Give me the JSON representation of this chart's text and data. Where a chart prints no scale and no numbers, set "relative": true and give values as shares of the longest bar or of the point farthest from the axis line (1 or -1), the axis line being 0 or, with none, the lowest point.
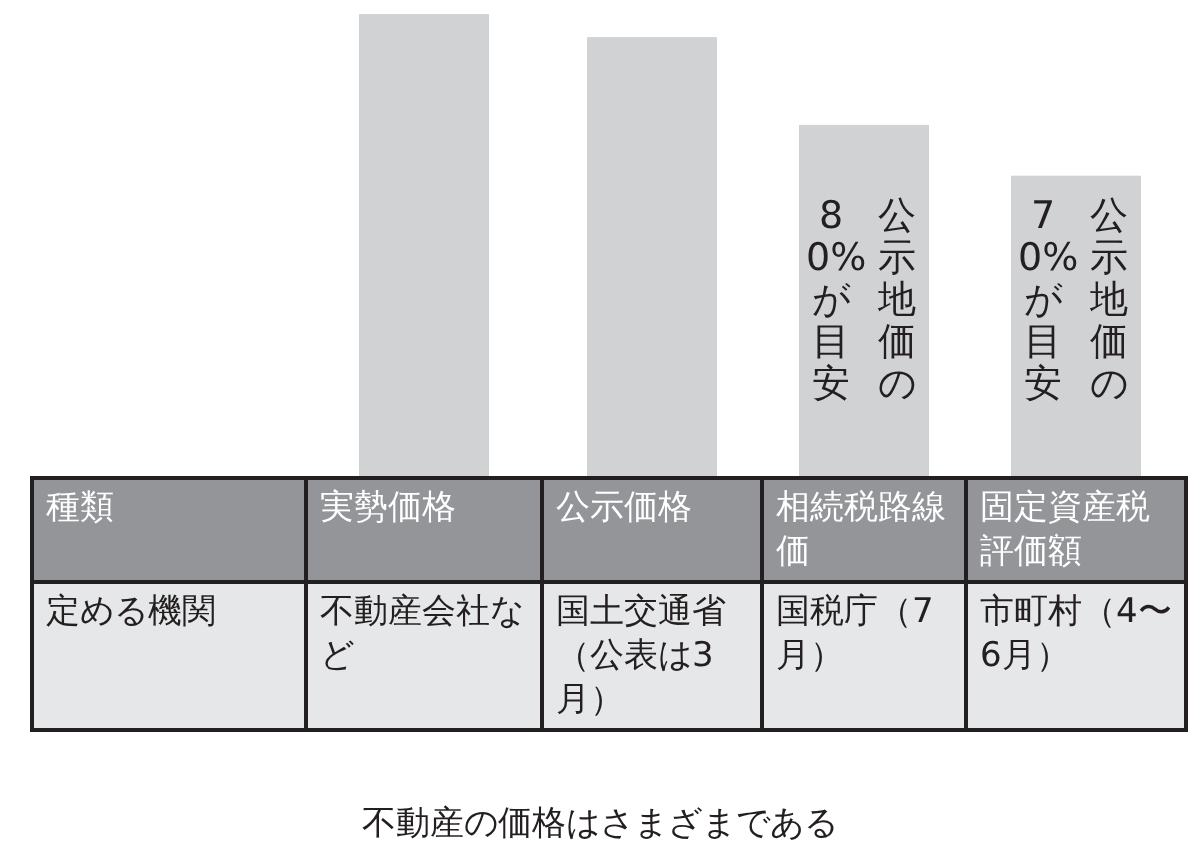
{
  "chart_data": {
    "type": "bar",
    "relative": true,
    "title": "不動産の価格はさまざまである",
    "categories": [
      "実勢価格",
      "公示価格",
      "相続税路線価",
      "固定資産税評価額"
    ],
    "values": [
      1,
      0.95,
      0.76,
      0.65
    ],
    "color": "#d1d2d4",
    "annotations": [
      "種類",
      "定める機関",
      "不動産会社など",
      "国土交通省（公表は3月）",
      "国税庁（7月）",
      "市町村（4〜6月）",
      "公示地価の80%が目安",
      "公示地価の70%が目安"
    ]
  }
}
